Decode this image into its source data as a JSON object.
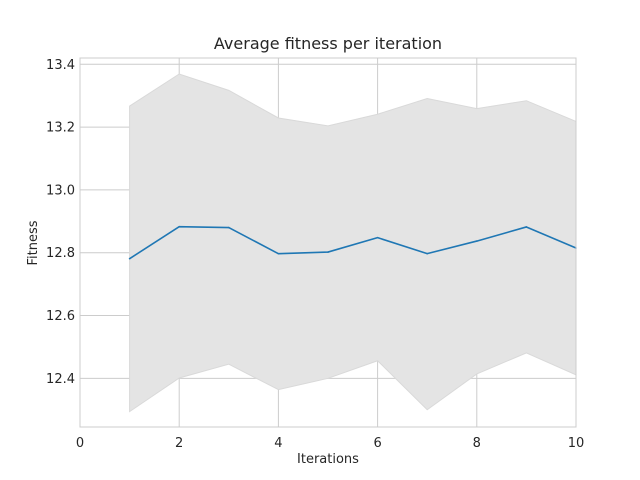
{
  "chart_data": {
    "type": "line",
    "title": "Average fitness per iteration",
    "xlabel": "Iterations",
    "ylabel": "Fitness",
    "xlim": [
      0,
      10
    ],
    "ylim": [
      12.245,
      13.42
    ],
    "xticks": [
      0,
      2,
      4,
      6,
      8,
      10
    ],
    "yticks": [
      12.4,
      12.6,
      12.8,
      13.0,
      13.2,
      13.4
    ],
    "xtick_labels": [
      "0",
      "2",
      "4",
      "6",
      "8",
      "10"
    ],
    "ytick_labels": [
      "12.4",
      "12.6",
      "12.8",
      "13.0",
      "13.2",
      "13.4"
    ],
    "grid": true,
    "series": [
      {
        "x": [
          1,
          2,
          3,
          4,
          5,
          6,
          7,
          8,
          9,
          10
        ],
        "values": [
          12.781,
          12.883,
          12.88,
          12.797,
          12.802,
          12.848,
          12.797,
          12.837,
          12.882,
          12.815
        ],
        "lower": [
          12.294,
          12.401,
          12.445,
          12.364,
          12.4,
          12.456,
          12.3,
          12.414,
          12.481,
          12.411
        ],
        "upper": [
          13.267,
          13.369,
          13.317,
          13.229,
          13.204,
          13.241,
          13.291,
          13.259,
          13.284,
          13.218
        ],
        "color": "#1f77b4",
        "band_color": "#e4e4e4"
      }
    ]
  }
}
